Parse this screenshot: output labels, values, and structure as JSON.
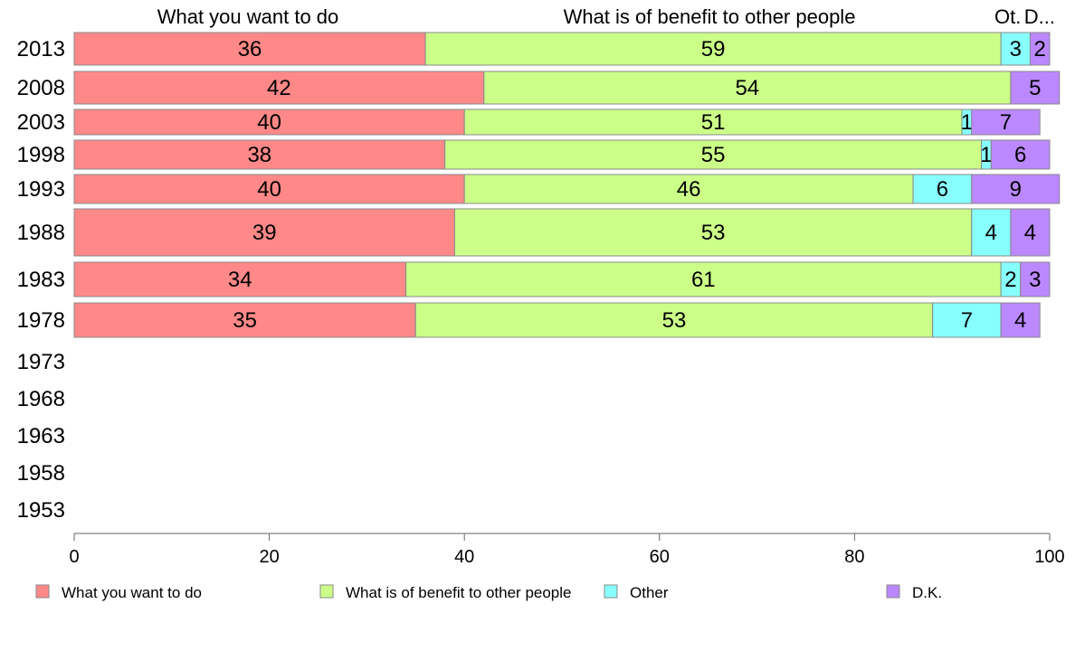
{
  "chart_data": {
    "type": "bar",
    "orientation": "horizontal",
    "stacked": true,
    "categories": [
      "2013",
      "2008",
      "2003",
      "1998",
      "1993",
      "1988",
      "1983",
      "1978",
      "1973",
      "1968",
      "1963",
      "1958",
      "1953"
    ],
    "series": [
      {
        "name": "What you want to do",
        "color": "#ff8888",
        "values": [
          36,
          42,
          40,
          38,
          40,
          39,
          34,
          35,
          null,
          null,
          null,
          null,
          null
        ]
      },
      {
        "name": "What is of benefit to other people",
        "color": "#ccff88",
        "values": [
          59,
          54,
          51,
          55,
          46,
          53,
          61,
          53,
          null,
          null,
          null,
          null,
          null
        ]
      },
      {
        "name": "Other",
        "color": "#88ffff",
        "values": [
          3,
          0,
          1,
          1,
          6,
          4,
          2,
          7,
          null,
          null,
          null,
          null,
          null
        ]
      },
      {
        "name": "D.K.",
        "color": "#bb88ff",
        "values": [
          2,
          5,
          7,
          6,
          9,
          4,
          3,
          4,
          null,
          null,
          null,
          null,
          null
        ]
      }
    ],
    "top_labels": [
      "What you want to do",
      "What is of benefit to other people",
      "Ot.",
      "D..."
    ],
    "xlim": [
      0,
      100
    ],
    "xticks": [
      0,
      20,
      40,
      60,
      80,
      100
    ],
    "legend_position": "bottom"
  }
}
